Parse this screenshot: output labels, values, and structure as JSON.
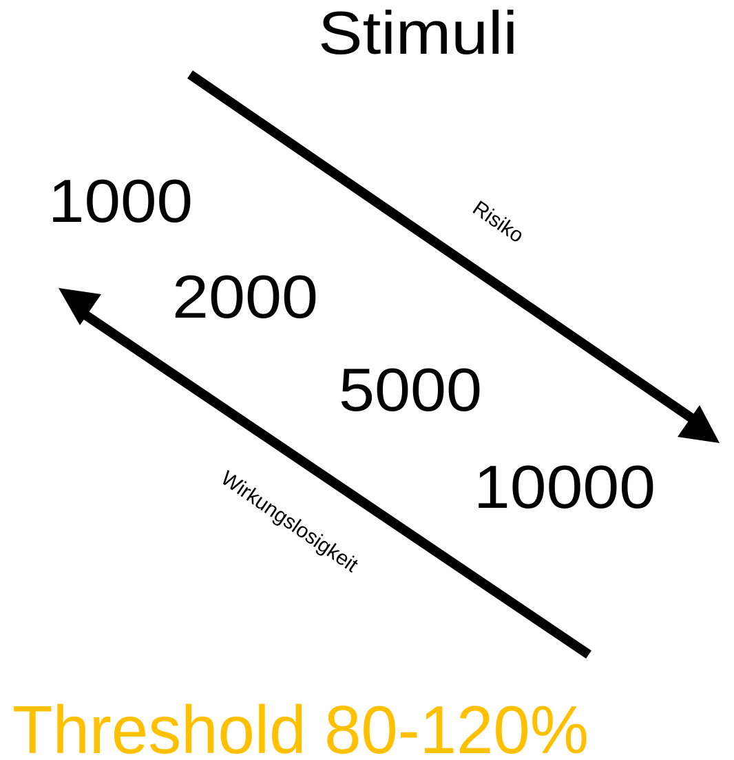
{
  "title": "Stimuli",
  "levels": [
    "1000",
    "2000",
    "5000",
    "10000"
  ],
  "arrows": [
    {
      "label": "Risiko"
    },
    {
      "label": "Wirkungslosigkeit"
    }
  ],
  "footer": "Threshold 80-120%"
}
